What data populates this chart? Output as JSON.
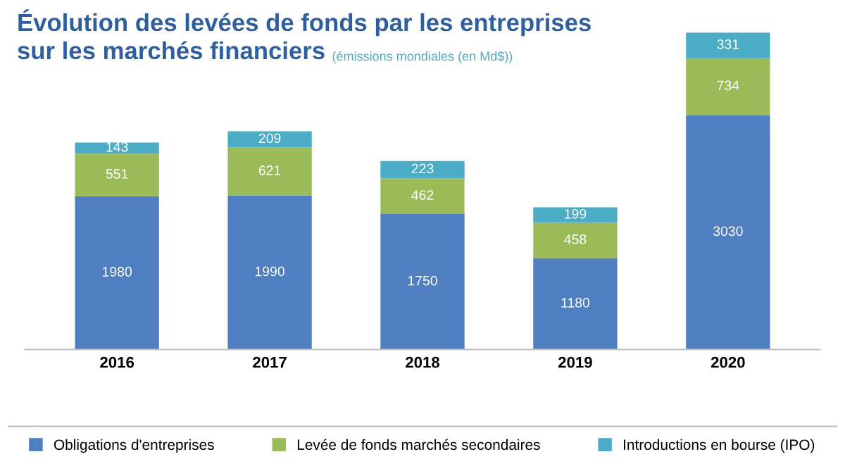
{
  "chart_data": {
    "type": "bar",
    "stacked": true,
    "title": "Évolution des levées de fonds par les entreprises\nsur les marchés financiers",
    "subtitle": "(émissions mondiales (en Md$))",
    "categories": [
      "2016",
      "2017",
      "2018",
      "2019",
      "2020"
    ],
    "series": [
      {
        "name": "Obligations d'entreprises",
        "color": "#4f7fc1",
        "values": [
          1980,
          1990,
          1750,
          1180,
          3030
        ]
      },
      {
        "name": "Levée de fonds marchés secondaires",
        "color": "#9bbb59",
        "values": [
          551,
          621,
          462,
          458,
          734
        ]
      },
      {
        "name": "Introductions en bourse (IPO)",
        "color": "#4bacc6",
        "values": [
          143,
          209,
          223,
          199,
          331
        ]
      }
    ],
    "data_labels": true,
    "legend": "bottom",
    "grid": false,
    "tick_labels": "x"
  }
}
